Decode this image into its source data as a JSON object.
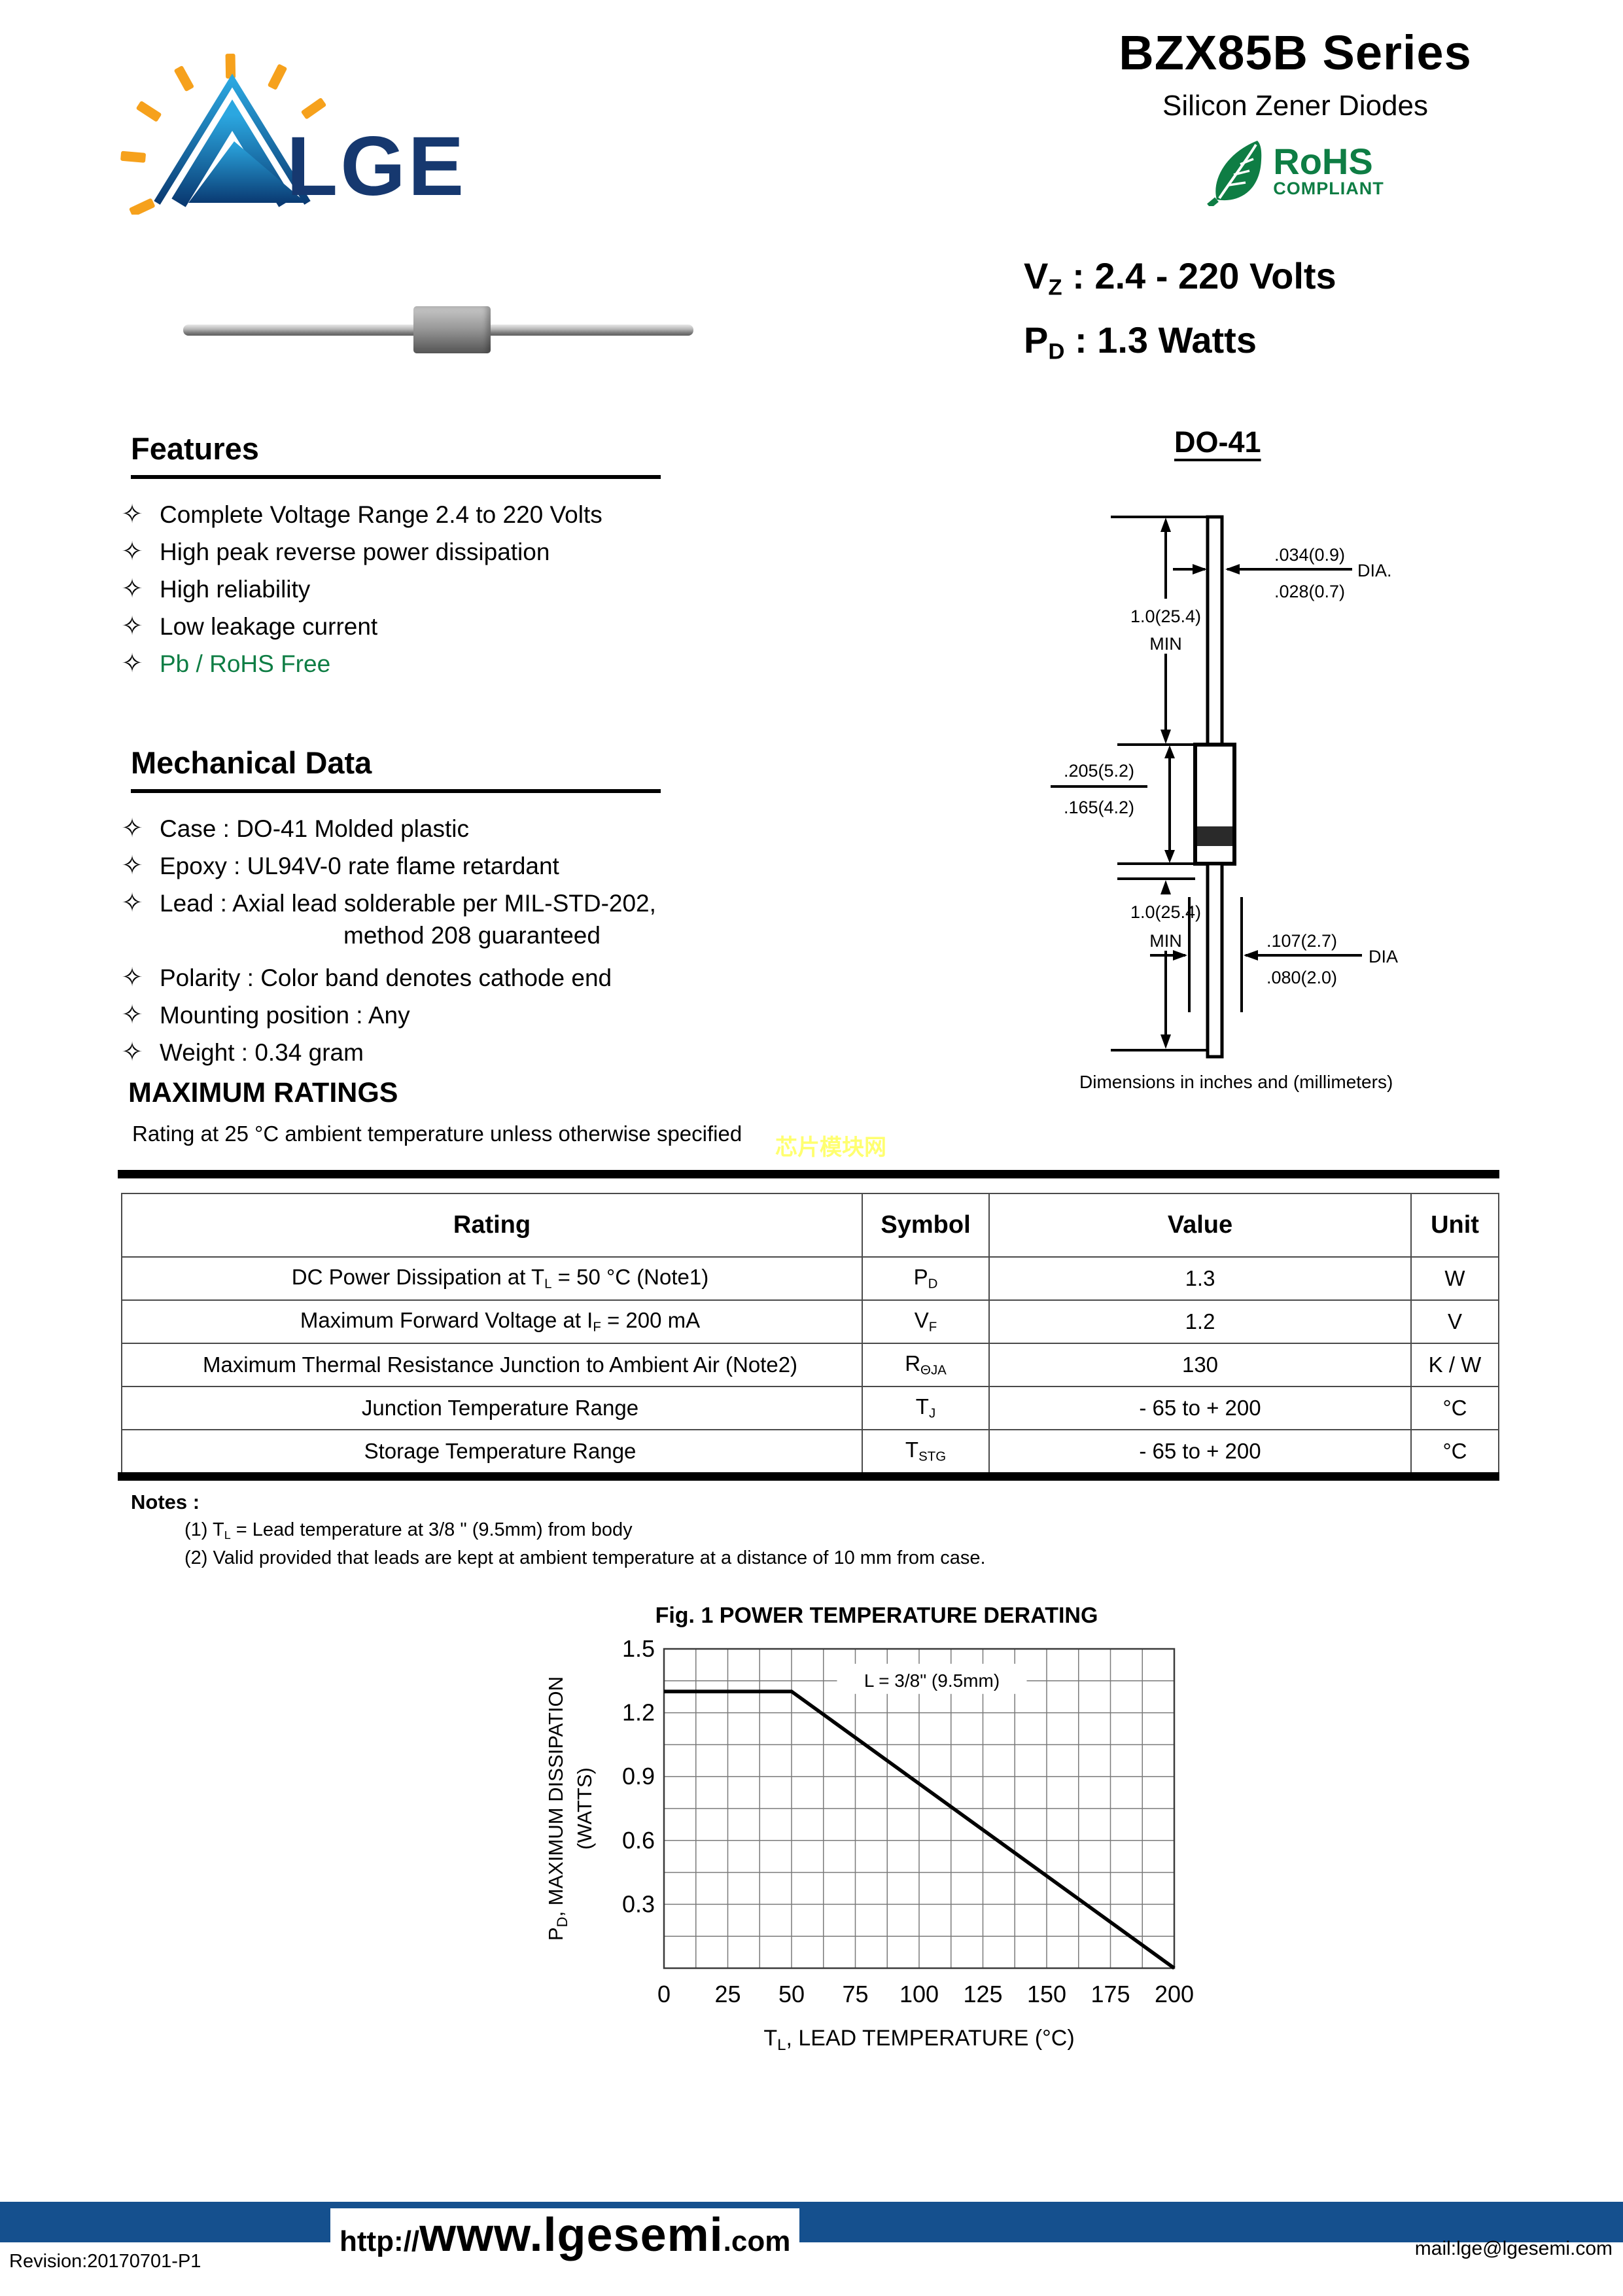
{
  "header": {
    "series_title": "BZX85B Series",
    "subtitle": "Silicon Zener Diodes",
    "rohs_line1": "RoHS",
    "rohs_line2": "COMPLIANT",
    "logo_text": "LGE",
    "vz_line": [
      {
        "t": "V"
      },
      {
        "s": "Z"
      },
      {
        "t": " : 2.4 - 220 Volts"
      }
    ],
    "pd_line": [
      {
        "t": "P"
      },
      {
        "s": "D"
      },
      {
        "t": " : 1.3 Watts"
      }
    ]
  },
  "features": {
    "heading": "Features",
    "bullet": "✧",
    "items": [
      {
        "text": "Complete Voltage Range 2.4 to 220 Volts",
        "green": false
      },
      {
        "text": "High peak reverse power dissipation",
        "green": false
      },
      {
        "text": "High reliability",
        "green": false
      },
      {
        "text": "Low leakage current",
        "green": false
      },
      {
        "text": "Pb / RoHS Free",
        "green": true
      }
    ]
  },
  "mechanical": {
    "heading": "Mechanical Data",
    "items": [
      {
        "text": "Case : DO-41 Molded plastic"
      },
      {
        "text": "Epoxy : UL94V-0 rate flame retardant"
      },
      {
        "text": "Lead : Axial lead solderable per MIL-STD-202,",
        "cont": "method 208 guaranteed"
      },
      {
        "text": "Polarity : Color band denotes cathode end"
      },
      {
        "text": "Mounting position : Any"
      },
      {
        "text": "Weight : 0.34 gram"
      }
    ]
  },
  "package": {
    "name": "DO-41",
    "caption": "Dimensions in inches and (millimeters)",
    "dims": {
      "lead_dia_top_hi": ".034(0.9)",
      "lead_dia_top_lo": ".028(0.7)",
      "dia_top_label": "DIA.",
      "lead_len": "1.0(25.4)",
      "min_label": "MIN",
      "body_len_hi": ".205(5.2)",
      "body_len_lo": ".165(4.2)",
      "body_dia_hi": ".107(2.7)",
      "body_dia_lo": ".080(2.0)",
      "dia_bottom_label": "DIA"
    }
  },
  "ratings": {
    "heading": "MAXIMUM RATINGS",
    "subtitle": "Rating at 25 °C ambient temperature unless otherwise specified",
    "watermark": "芯片模块网",
    "headers": [
      "Rating",
      "Symbol",
      "Value",
      "Unit"
    ],
    "rows": [
      {
        "rating": [
          {
            "t": "DC Power Dissipation at T"
          },
          {
            "s": "L"
          },
          {
            "t": " = 50 °C (Note1)"
          }
        ],
        "symbol": [
          {
            "t": "P"
          },
          {
            "s": "D"
          }
        ],
        "value": "1.3",
        "unit": "W"
      },
      {
        "rating": [
          {
            "t": "Maximum Forward Voltage at I"
          },
          {
            "s": "F"
          },
          {
            "t": " = 200 mA"
          }
        ],
        "symbol": [
          {
            "t": "V"
          },
          {
            "s": "F"
          }
        ],
        "value": "1.2",
        "unit": "V"
      },
      {
        "rating": [
          {
            "t": "Maximum Thermal Resistance Junction to Ambient Air (Note2)"
          }
        ],
        "symbol": [
          {
            "t": "R"
          },
          {
            "s": "ΘJA"
          }
        ],
        "value": "130",
        "unit": "K / W"
      },
      {
        "rating": [
          {
            "t": "Junction Temperature Range"
          }
        ],
        "symbol": [
          {
            "t": "T"
          },
          {
            "s": "J"
          }
        ],
        "value": "- 65 to + 200",
        "unit": "°C"
      },
      {
        "rating": [
          {
            "t": "Storage Temperature Range"
          }
        ],
        "symbol": [
          {
            "t": "T"
          },
          {
            "s": "STG"
          }
        ],
        "value": "- 65 to + 200",
        "unit": "°C"
      }
    ]
  },
  "notes": {
    "heading": "Notes :",
    "items": [
      [
        {
          "t": "(1) T"
        },
        {
          "s": "L"
        },
        {
          "t": " = Lead temperature at 3/8 \" (9.5mm) from body"
        }
      ],
      [
        {
          "t": "(2) Valid provided that leads are kept at ambient temperature at a distance of 10 mm from case."
        }
      ]
    ]
  },
  "chart_data": {
    "type": "line",
    "title": "Fig. 1  POWER TEMPERATURE DERATING",
    "xlabel_segments": [
      {
        "t": "T"
      },
      {
        "s": "L"
      },
      {
        "t": ",  LEAD TEMPERATURE (°C)"
      }
    ],
    "ylabel_line1_segments": [
      {
        "t": "P"
      },
      {
        "s": "D"
      },
      {
        "t": ", MAXIMUM DISSIPATION"
      }
    ],
    "ylabel_line2": "(WATTS)",
    "annotation": "L = 3/8\" (9.5mm)",
    "x": [
      0,
      50,
      200
    ],
    "y": [
      1.3,
      1.3,
      0
    ],
    "xlim": [
      0,
      200
    ],
    "ylim": [
      0,
      1.5
    ],
    "xticks": [
      0,
      25,
      50,
      75,
      100,
      125,
      150,
      175,
      200
    ],
    "yticks": [
      0.3,
      0.6,
      0.9,
      1.2,
      1.5
    ],
    "x_minor_step": 12.5,
    "y_minor_step": 0.15,
    "grid": true,
    "legend_position": "none"
  },
  "footer": {
    "url_prefix": "http://",
    "url_main": "www.lgesemi",
    "url_suffix": ".com",
    "revision": "Revision:20170701-P1",
    "mail": "mail:lge@lgesemi.com"
  },
  "colors": {
    "accent_blue_bar": "#15508e",
    "brand_navy": "#16386f",
    "brand_orange": "#f6a11c",
    "rohs_green": "#0e7d44",
    "watermark_yellow": "#ffff70"
  }
}
